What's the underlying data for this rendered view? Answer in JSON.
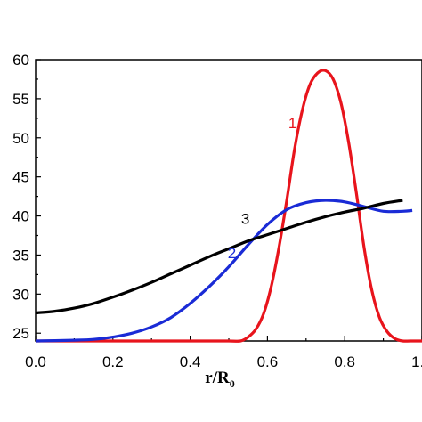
{
  "chart_data": {
    "type": "line",
    "xlabel": "r/R",
    "xlabel_subscript": "0",
    "xlim": [
      0.0,
      1.0
    ],
    "ylim": [
      24,
      60
    ],
    "x_ticks": [
      0.0,
      0.2,
      0.4,
      0.6,
      0.8,
      1.0
    ],
    "x_tick_labels": [
      "0.0",
      "0.2",
      "0.4",
      "0.6",
      "0.8",
      "1.0"
    ],
    "y_ticks": [
      25,
      30,
      35,
      40,
      45,
      50,
      55,
      60
    ],
    "y_tick_labels": [
      "25",
      "30",
      "35",
      "40",
      "45",
      "50",
      "55",
      "60"
    ],
    "grid": false,
    "legend": "none",
    "series": [
      {
        "label": "1",
        "color": "#e8141c",
        "x": [
          0.0,
          0.4,
          0.5,
          0.53,
          0.55,
          0.57,
          0.59,
          0.61,
          0.63,
          0.65,
          0.67,
          0.69,
          0.71,
          0.73,
          0.75,
          0.77,
          0.79,
          0.81,
          0.83,
          0.85,
          0.87,
          0.89,
          0.91,
          0.93,
          0.95,
          0.97,
          1.0
        ],
        "y": [
          24.0,
          24.0,
          24.0,
          24.0,
          24.5,
          25.5,
          27.5,
          31.0,
          36.0,
          42.0,
          48.5,
          53.5,
          56.8,
          58.3,
          58.6,
          57.5,
          54.5,
          49.5,
          43.0,
          36.0,
          30.5,
          27.0,
          25.2,
          24.3,
          24.0,
          24.0,
          24.0
        ]
      },
      {
        "label": "2",
        "color": "#1a2bd6",
        "x": [
          0.0,
          0.05,
          0.1,
          0.15,
          0.2,
          0.25,
          0.3,
          0.35,
          0.4,
          0.45,
          0.5,
          0.55,
          0.6,
          0.65,
          0.7,
          0.75,
          0.8,
          0.85,
          0.9,
          0.95,
          0.975
        ],
        "y": [
          24.0,
          24.05,
          24.1,
          24.2,
          24.5,
          25.0,
          25.8,
          27.0,
          28.8,
          31.0,
          33.5,
          36.3,
          38.9,
          40.8,
          41.7,
          42.0,
          41.8,
          41.2,
          40.6,
          40.6,
          40.7
        ]
      },
      {
        "label": "3",
        "color": "#000000",
        "x": [
          0.0,
          0.05,
          0.1,
          0.15,
          0.2,
          0.25,
          0.3,
          0.35,
          0.4,
          0.45,
          0.5,
          0.55,
          0.6,
          0.65,
          0.7,
          0.75,
          0.8,
          0.85,
          0.9,
          0.95
        ],
        "y": [
          27.6,
          27.8,
          28.2,
          28.8,
          29.6,
          30.5,
          31.5,
          32.6,
          33.7,
          34.8,
          35.8,
          36.8,
          37.6,
          38.4,
          39.2,
          39.9,
          40.5,
          41.0,
          41.6,
          42.0
        ]
      }
    ],
    "curve_labels": [
      {
        "text": "1",
        "x": 0.665,
        "y": 51.2,
        "color": "#e8141c"
      },
      {
        "text": "2",
        "x": 0.508,
        "y": 34.6,
        "color": "#1a2bd6"
      },
      {
        "text": "3",
        "x": 0.543,
        "y": 39.0,
        "color": "#000000"
      }
    ]
  }
}
